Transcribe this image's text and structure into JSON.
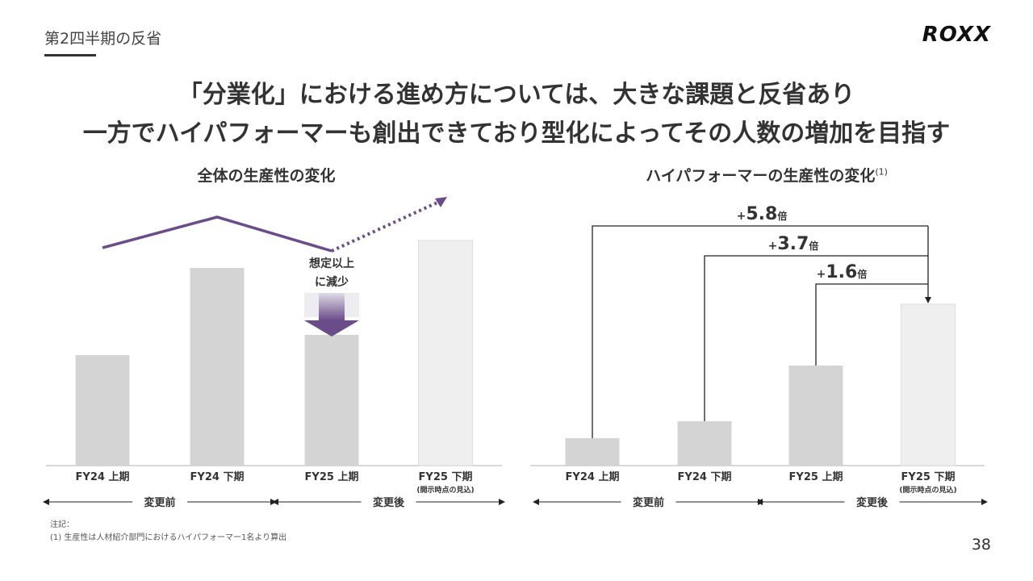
{
  "header": {
    "section": "第2四半期の反省",
    "logo": "ROXX",
    "headline_line1": "「分業化」における進め方については、大きな課題と反省あり",
    "headline_line2": "一方でハイパフォーマーも創出できており型化によってその人数の増加を目指す"
  },
  "colors": {
    "accent": "#6b4c8a",
    "bar": "#d4d4d4",
    "bar_forecast": "#efefef"
  },
  "chart_data": [
    {
      "type": "bar",
      "title": "全体の生産性の変化",
      "categories": [
        "FY24 上期",
        "FY24 下期",
        "FY25 上期",
        "FY25 下期"
      ],
      "category_sublabels": [
        "",
        "",
        "",
        "(開示時点の見込)"
      ],
      "values": [
        137,
        245,
        162,
        279
      ],
      "overlay_line_values": [
        270,
        308,
        266
      ],
      "overlay_projection_values": [
        266,
        332
      ],
      "annotation_line1": "想定以上",
      "annotation_line2": "に減少",
      "groups": [
        {
          "label": "変更前",
          "from": 0,
          "to": 1
        },
        {
          "label": "変更後",
          "from": 2,
          "to": 3
        }
      ],
      "ylim": [
        0,
        340
      ]
    },
    {
      "type": "bar",
      "title": "ハイパフォーマーの生産性の変化",
      "title_note": "(1)",
      "categories": [
        "FY24 上期",
        "FY24 下期",
        "FY25 上期",
        "FY25 下期"
      ],
      "category_sublabels": [
        "",
        "",
        "",
        "(開示時点の見込)"
      ],
      "values": [
        34,
        55,
        124,
        200
      ],
      "comparisons": [
        {
          "from": 0,
          "plus": "+",
          "value": "5.8",
          "unit": "倍"
        },
        {
          "from": 1,
          "plus": "+",
          "value": "3.7",
          "unit": "倍"
        },
        {
          "from": 2,
          "plus": "+",
          "value": "1.6",
          "unit": "倍"
        }
      ],
      "groups": [
        {
          "label": "変更前",
          "from": 0,
          "to": 1
        },
        {
          "label": "変更後",
          "from": 2,
          "to": 3
        }
      ],
      "ylim": [
        0,
        340
      ]
    }
  ],
  "footnote": {
    "heading": "注記：",
    "note1": "(1) 生産性は人材紹介部門におけるハイパフォーマー1名より算出"
  },
  "page_number": "38"
}
